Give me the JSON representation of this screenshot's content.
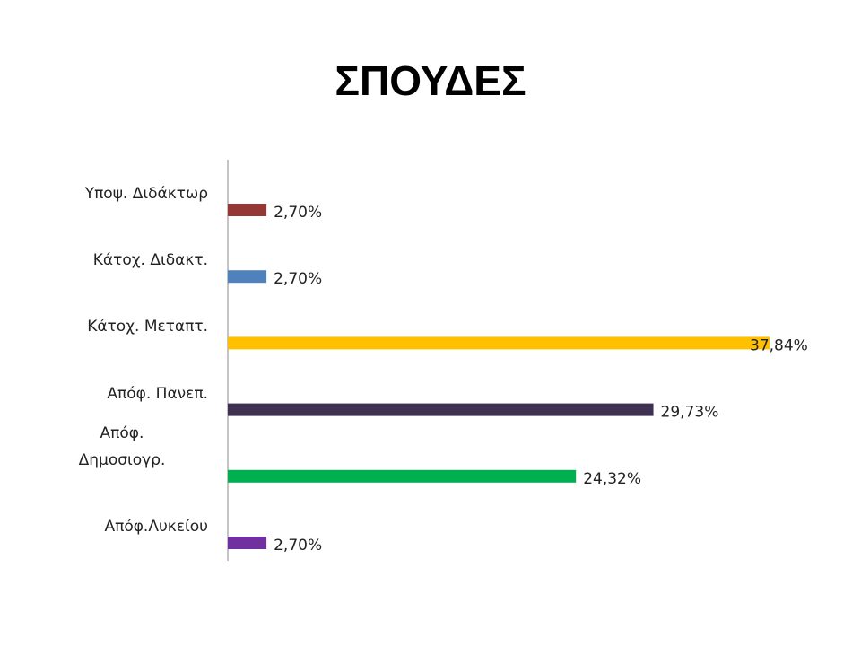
{
  "chart_data": {
    "type": "bar",
    "orientation": "horizontal",
    "title": "ΣΠΟΥΔΕΣ",
    "categories": [
      "Υποψ. Διδάκτωρ",
      "Κάτοχ. Διδακτ.",
      "Κάτοχ. Μεταπτ.",
      "Απόφ. Πανεπ.",
      "Απόφ.\nΔημοσιογρ.",
      "Απόφ.Λυκείου"
    ],
    "values": [
      2.7,
      2.7,
      37.84,
      29.73,
      24.32,
      2.7
    ],
    "value_labels": [
      "2,70%",
      "2,70%",
      "37,84%",
      "29,73%",
      "24,32%",
      "2,70%"
    ],
    "colors": [
      "#953735",
      "#4f81bd",
      "#ffc000",
      "#3f3151",
      "#00b050",
      "#7030a0"
    ]
  }
}
